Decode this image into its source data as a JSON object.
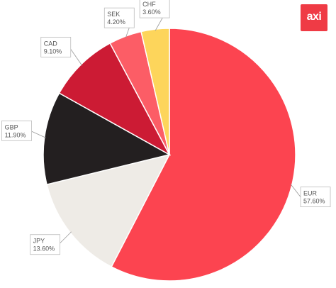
{
  "brand": {
    "logo_text": "axi",
    "logo_color": "#ef3b45"
  },
  "chart_data": {
    "type": "pie",
    "title": "",
    "start_angle_deg": 0,
    "direction": "clockwise",
    "slices": [
      {
        "label": "EUR",
        "value": 57.6,
        "value_label": "57.60%",
        "color": "#fc4450"
      },
      {
        "label": "JPY",
        "value": 13.6,
        "value_label": "13.60%",
        "color": "#eeebe6"
      },
      {
        "label": "GBP",
        "value": 11.9,
        "value_label": "11.90%",
        "color": "#231f20"
      },
      {
        "label": "CAD",
        "value": 9.1,
        "value_label": "9.10%",
        "color": "#cc1b34"
      },
      {
        "label": "SEK",
        "value": 4.2,
        "value_label": "4.20%",
        "color": "#fc5d66"
      },
      {
        "label": "CHF",
        "value": 3.6,
        "value_label": "3.60%",
        "color": "#fdd55b"
      }
    ]
  }
}
